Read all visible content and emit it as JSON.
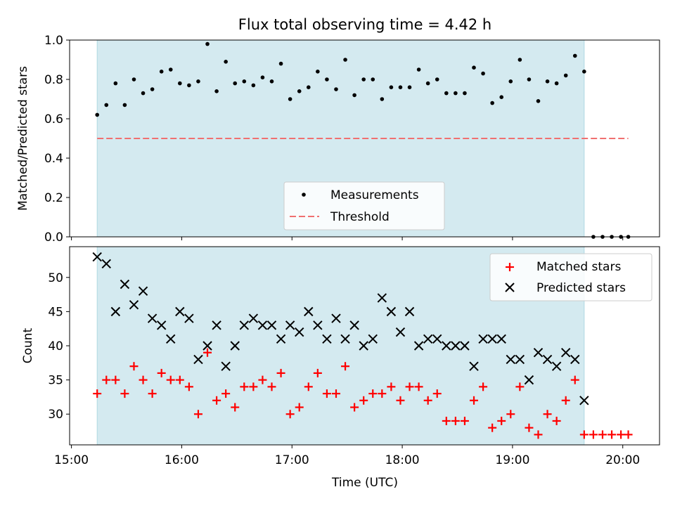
{
  "chart_data": [
    {
      "type": "scatter",
      "title": "Flux total observing time = 4.42 h",
      "xlabel": "",
      "ylabel": "Matched/Predicted stars",
      "ylim": [
        0,
        1.0
      ],
      "yticks": [
        "0.0",
        "0.2",
        "0.4",
        "0.6",
        "0.8",
        "1.0"
      ],
      "shaded_span": {
        "start": "15:14",
        "end": "19:39",
        "color": "#d4eaf0"
      },
      "threshold": {
        "value": 0.5,
        "from": "15:14",
        "to": "20:03",
        "color": "#f07070"
      },
      "legend": {
        "placement": "lower-center",
        "entries": [
          "Measurements",
          "Threshold"
        ]
      },
      "series": [
        {
          "name": "Measurements",
          "marker": "dot",
          "color": "#000000",
          "x": [
            "15:14",
            "15:19",
            "15:24",
            "15:29",
            "15:34",
            "15:39",
            "15:44",
            "15:49",
            "15:54",
            "15:59",
            "16:04",
            "16:09",
            "16:14",
            "16:19",
            "16:24",
            "16:29",
            "16:34",
            "16:39",
            "16:44",
            "16:49",
            "16:54",
            "16:59",
            "17:04",
            "17:09",
            "17:14",
            "17:19",
            "17:24",
            "17:29",
            "17:34",
            "17:39",
            "17:44",
            "17:49",
            "17:54",
            "17:59",
            "18:04",
            "18:09",
            "18:14",
            "18:19",
            "18:24",
            "18:29",
            "18:34",
            "18:39",
            "18:44",
            "18:49",
            "18:54",
            "18:59",
            "19:04",
            "19:09",
            "19:14",
            "19:19",
            "19:24",
            "19:29",
            "19:34",
            "19:39",
            "19:44",
            "19:49",
            "19:54",
            "19:59",
            "20:03"
          ],
          "values": [
            0.62,
            0.67,
            0.78,
            0.67,
            0.8,
            0.73,
            0.75,
            0.84,
            0.85,
            0.78,
            0.77,
            0.79,
            0.98,
            0.74,
            0.89,
            0.78,
            0.79,
            0.77,
            0.81,
            0.79,
            0.88,
            0.7,
            0.74,
            0.76,
            0.84,
            0.8,
            0.75,
            0.9,
            0.72,
            0.8,
            0.8,
            0.7,
            0.76,
            0.76,
            0.76,
            0.85,
            0.78,
            0.8,
            0.73,
            0.73,
            0.73,
            0.86,
            0.83,
            0.68,
            0.71,
            0.79,
            0.9,
            0.8,
            0.69,
            0.79,
            0.78,
            0.82,
            0.92,
            0.84,
            0.0,
            0.0,
            0.0,
            0.0,
            0.0
          ]
        }
      ]
    },
    {
      "type": "scatter",
      "title": "",
      "xlabel": "Time (UTC)",
      "ylabel": "Count",
      "ylim": [
        25.5,
        54.5
      ],
      "yticks": [
        "30",
        "35",
        "40",
        "45",
        "50"
      ],
      "xticks": [
        "15:00",
        "16:00",
        "17:00",
        "18:00",
        "19:00",
        "20:00"
      ],
      "shaded_span": {
        "start": "15:14",
        "end": "19:39",
        "color": "#d4eaf0"
      },
      "legend": {
        "placement": "upper-right",
        "entries": [
          "Matched stars",
          "Predicted stars"
        ]
      },
      "series": [
        {
          "name": "Matched stars",
          "marker": "plus",
          "color": "#ff0000",
          "x": [
            "15:14",
            "15:19",
            "15:24",
            "15:29",
            "15:34",
            "15:39",
            "15:44",
            "15:49",
            "15:54",
            "15:59",
            "16:04",
            "16:09",
            "16:14",
            "16:19",
            "16:24",
            "16:29",
            "16:34",
            "16:39",
            "16:44",
            "16:49",
            "16:54",
            "16:59",
            "17:04",
            "17:09",
            "17:14",
            "17:19",
            "17:24",
            "17:29",
            "17:34",
            "17:39",
            "17:44",
            "17:49",
            "17:54",
            "17:59",
            "18:04",
            "18:09",
            "18:14",
            "18:19",
            "18:24",
            "18:29",
            "18:34",
            "18:39",
            "18:44",
            "18:49",
            "18:54",
            "18:59",
            "19:04",
            "19:09",
            "19:14",
            "19:19",
            "19:24",
            "19:29",
            "19:34",
            "19:39",
            "19:44",
            "19:49",
            "19:54",
            "19:59",
            "20:03"
          ],
          "values": [
            33,
            35,
            35,
            33,
            37,
            35,
            33,
            36,
            35,
            35,
            34,
            30,
            39,
            32,
            33,
            31,
            34,
            34,
            35,
            34,
            36,
            30,
            31,
            34,
            36,
            33,
            33,
            37,
            31,
            32,
            33,
            33,
            34,
            32,
            34,
            34,
            32,
            33,
            29,
            29,
            29,
            32,
            34,
            28,
            29,
            30,
            34,
            28,
            27,
            30,
            29,
            32,
            35,
            27,
            27,
            27,
            27,
            27,
            27
          ]
        },
        {
          "name": "Predicted stars",
          "marker": "x",
          "color": "#000000",
          "x": [
            "15:14",
            "15:19",
            "15:24",
            "15:29",
            "15:34",
            "15:39",
            "15:44",
            "15:49",
            "15:54",
            "15:59",
            "16:04",
            "16:09",
            "16:14",
            "16:19",
            "16:24",
            "16:29",
            "16:34",
            "16:39",
            "16:44",
            "16:49",
            "16:54",
            "16:59",
            "17:04",
            "17:09",
            "17:14",
            "17:19",
            "17:24",
            "17:29",
            "17:34",
            "17:39",
            "17:44",
            "17:49",
            "17:54",
            "17:59",
            "18:04",
            "18:09",
            "18:14",
            "18:19",
            "18:24",
            "18:29",
            "18:34",
            "18:39",
            "18:44",
            "18:49",
            "18:54",
            "18:59",
            "19:04",
            "19:09",
            "19:14",
            "19:19",
            "19:24",
            "19:29",
            "19:34",
            "19:39"
          ],
          "values": [
            53,
            52,
            45,
            49,
            46,
            48,
            44,
            43,
            41,
            45,
            44,
            38,
            40,
            43,
            37,
            40,
            43,
            44,
            43,
            43,
            41,
            43,
            42,
            45,
            43,
            41,
            44,
            41,
            43,
            40,
            41,
            47,
            45,
            42,
            45,
            40,
            41,
            41,
            40,
            40,
            40,
            37,
            41,
            41,
            41,
            38,
            38,
            35,
            39,
            38,
            37,
            39,
            38,
            32
          ]
        }
      ]
    }
  ]
}
